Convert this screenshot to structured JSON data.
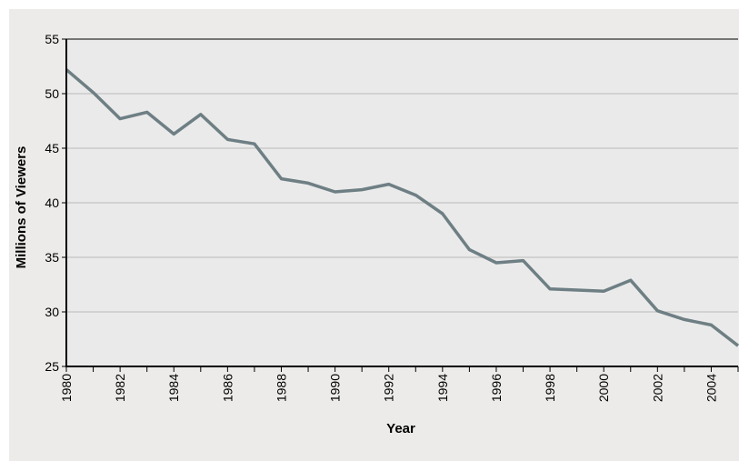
{
  "chart_data": {
    "type": "line",
    "title": "",
    "xlabel": "Year",
    "ylabel": "Millions of Viewers",
    "xlim": [
      1980,
      2005
    ],
    "ylim": [
      25,
      55
    ],
    "yticks": [
      25,
      30,
      35,
      40,
      45,
      50,
      55
    ],
    "xtick_labels": [
      "1980",
      "1982",
      "1984",
      "1986",
      "1988",
      "1990",
      "1992",
      "1994",
      "1996",
      "1998",
      "2000",
      "2002",
      "2004"
    ],
    "grid": true,
    "legend": "none",
    "series": [
      {
        "x": [
          1980,
          1981,
          1982,
          1983,
          1984,
          1985,
          1986,
          1987,
          1988,
          1989,
          1990,
          1991,
          1992,
          1993,
          1994,
          1995,
          1996,
          1997,
          1998,
          1999,
          2000,
          2001,
          2002,
          2003,
          2004,
          2005
        ],
        "values": [
          52.2,
          50.1,
          47.7,
          48.3,
          46.3,
          48.1,
          45.8,
          45.4,
          42.2,
          41.8,
          41.0,
          41.2,
          41.7,
          40.7,
          39.0,
          35.7,
          34.5,
          34.7,
          32.1,
          32.0,
          31.9,
          32.9,
          30.1,
          29.3,
          28.8,
          26.9
        ]
      }
    ],
    "colors": {
      "line": "#6e7f84",
      "plot_background": "#eaeaea",
      "frame_background": "#ecebe9",
      "grid": "#b9b9b9",
      "axis": "#000000"
    }
  }
}
